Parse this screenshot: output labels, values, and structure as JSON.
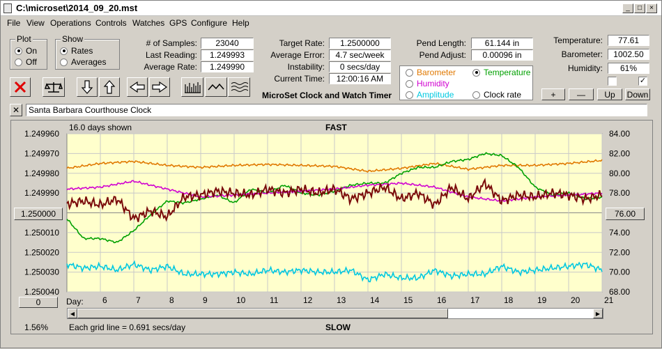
{
  "window": {
    "title": "C:\\microset\\2014_09_20.mst"
  },
  "menu": [
    "File",
    "View",
    "Operations",
    "Controls",
    "Watches",
    "GPS",
    "Configure",
    "Help"
  ],
  "plot_group": {
    "title": "Plot",
    "on": "On",
    "off": "Off",
    "selected": "On"
  },
  "show_group": {
    "title": "Show",
    "rates": "Rates",
    "averages": "Averages",
    "selected": "Rates"
  },
  "stats": {
    "samples_label": "# of Samples:",
    "samples": "23040",
    "last_reading_label": "Last Reading:",
    "last_reading": "1.249993",
    "average_rate_label": "Average Rate:",
    "average_rate": "1.249990",
    "target_rate_label": "Target Rate:",
    "target_rate": "1.2500000",
    "average_error_label": "Average Error:",
    "average_error": "4.7 sec/week",
    "instability_label": "Instability:",
    "instability": "0 secs/day",
    "current_time_label": "Current Time:",
    "current_time": "12:00:16 AM",
    "pend_length_label": "Pend Length:",
    "pend_length": "61.144 in",
    "pend_adjust_label": "Pend Adjust:",
    "pend_adjust": "0.00096 in",
    "temperature_label": "Temperature:",
    "temperature": "77.61",
    "barometer_label": "Barometer:",
    "barometer": "1002.50",
    "humidity_label": "Humidity:",
    "humidity": "61%"
  },
  "app_caption": "MicroSet Clock and Watch Timer",
  "sensor_options": {
    "barometer": "Barometer",
    "temperature": "Temperature",
    "humidity": "Humidity",
    "amplitude": "Amplitude",
    "clock_rate": "Clock rate",
    "selected": "Temperature",
    "colors": {
      "barometer": "#e07800",
      "temperature": "#00a000",
      "humidity": "#d000d0",
      "amplitude": "#00c8e0",
      "clock_rate": "#000000"
    }
  },
  "scale_buttons": {
    "plus": "+",
    "minus": "—",
    "up": "Up",
    "down": "Down"
  },
  "clock_name": "Santa Barbara Courthouse Clock",
  "chart": {
    "days_shown": "16.0 days shown",
    "top_caption": "FAST",
    "bottom_caption": "SLOW",
    "grid_note": "Each grid line = 0.691 secs/day",
    "percent": "1.56%",
    "left_button": "1.250000",
    "right_button": "76.00",
    "bottom_left_button": "0",
    "day_label": "Day:"
  },
  "chart_data": {
    "type": "line",
    "x_label": "Day:",
    "x_ticks": [
      "6",
      "7",
      "8",
      "9",
      "10",
      "11",
      "12",
      "13",
      "14",
      "15",
      "16",
      "17",
      "18",
      "19",
      "20",
      "21"
    ],
    "y_left_ticks": [
      "1.249960",
      "1.249970",
      "1.249980",
      "1.249990",
      "1.250000",
      "1.250010",
      "1.250020",
      "1.250030",
      "1.250040"
    ],
    "y_right_ticks": [
      "84.00",
      "82.00",
      "80.00",
      "78.00",
      "76.00",
      "74.00",
      "72.00",
      "70.00",
      "68.00"
    ],
    "xlim": [
      5,
      21
    ],
    "ylim_right": [
      68,
      84
    ],
    "ylim_left": [
      1.24996,
      1.25004
    ],
    "y_left_inverted": true,
    "grid": true,
    "series": [
      {
        "color": "#e07800",
        "axis": "right",
        "x": [
          5,
          6,
          7,
          8,
          9,
          10,
          11,
          12,
          13,
          14,
          15,
          16,
          17,
          18,
          19,
          20,
          21
        ],
        "values": [
          80.5,
          81.0,
          81.2,
          80.8,
          80.6,
          80.8,
          80.9,
          80.8,
          80.7,
          80.2,
          80.5,
          81.0,
          80.4,
          80.8,
          80.8,
          81.0,
          81.3
        ]
      },
      {
        "color": "#00a000",
        "axis": "right",
        "x": [
          5,
          5.5,
          6,
          6.5,
          7,
          7.5,
          8,
          8.5,
          9,
          9.5,
          10,
          10.5,
          11,
          11.5,
          12,
          12.5,
          13,
          13.5,
          14,
          14.5,
          15,
          15.5,
          16,
          16.5,
          17,
          17.5,
          18,
          18.5,
          19,
          19.5,
          20,
          20.5,
          21
        ],
        "values": [
          75.4,
          73.4,
          73.4,
          73.0,
          74.2,
          75.8,
          77.2,
          77.0,
          77.4,
          77.8,
          77.0,
          78.4,
          78.0,
          78.8,
          78.0,
          77.8,
          78.2,
          78.8,
          79.0,
          79.0,
          80.0,
          80.6,
          80.6,
          81.2,
          81.4,
          82.0,
          81.8,
          80.6,
          78.6,
          77.8,
          78.0,
          77.4,
          77.6
        ]
      },
      {
        "color": "#d000d0",
        "axis": "right",
        "x": [
          5,
          6,
          7,
          8,
          9,
          10,
          11,
          12,
          13,
          14,
          15,
          16,
          17,
          18,
          19,
          20,
          21
        ],
        "values": [
          78.4,
          78.6,
          79.2,
          78.4,
          77.6,
          77.8,
          78.0,
          78.2,
          78.4,
          78.8,
          79.0,
          78.6,
          77.6,
          77.2,
          77.6,
          77.8,
          78.0
        ]
      },
      {
        "color": "#00c8e0",
        "axis": "right",
        "x": [
          5,
          5.5,
          6,
          6.5,
          7,
          7.5,
          8,
          8.5,
          9,
          9.5,
          10,
          10.5,
          11,
          11.5,
          12,
          12.5,
          13,
          13.5,
          14,
          14.5,
          15,
          15.5,
          16,
          16.5,
          17,
          17.5,
          18,
          18.5,
          19,
          19.5,
          20,
          20.5,
          21
        ],
        "values": [
          70.8,
          70.4,
          70.6,
          70.2,
          70.8,
          70.2,
          70.6,
          69.8,
          69.8,
          69.8,
          70.0,
          69.8,
          70.2,
          70.0,
          70.2,
          70.0,
          70.0,
          70.2,
          69.2,
          69.8,
          69.4,
          69.4,
          70.2,
          69.6,
          69.8,
          69.8,
          70.6,
          70.0,
          70.2,
          70.4,
          70.6,
          70.8,
          70.2
        ]
      },
      {
        "color": "#7a0a0a",
        "axis": "right",
        "x": [
          5,
          5.5,
          6,
          6.5,
          7,
          7.5,
          8,
          8.5,
          9,
          9.5,
          10,
          10.5,
          11,
          11.5,
          12,
          12.5,
          13,
          13.5,
          14,
          14.5,
          15,
          15.5,
          16,
          16.5,
          17,
          17.5,
          18,
          18.5,
          19,
          19.5,
          20,
          20.5,
          21
        ],
        "values": [
          76.9,
          77.2,
          76.8,
          77.4,
          75.4,
          76.2,
          75.6,
          77.6,
          77.8,
          78.2,
          78.0,
          77.8,
          78.4,
          78.0,
          78.4,
          78.0,
          78.4,
          77.4,
          78.0,
          78.6,
          77.4,
          78.0,
          76.8,
          78.6,
          77.4,
          79.0,
          77.2,
          77.8,
          77.6,
          78.0,
          77.8,
          77.4,
          77.8
        ]
      }
    ]
  },
  "toolbar_icons": [
    "close-x-icon",
    "balance-scale-icon",
    "arrow-down-icon",
    "arrow-up-icon",
    "arrow-left-icon",
    "arrow-right-icon",
    "bar-chart-icon",
    "line-wave-icon",
    "multi-wave-icon"
  ]
}
